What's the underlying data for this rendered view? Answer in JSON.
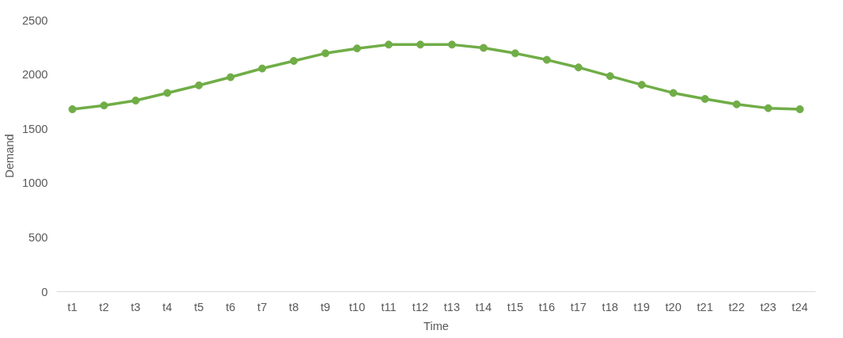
{
  "chart_data": {
    "type": "line",
    "xlabel": "Time",
    "ylabel": "Demand",
    "categories": [
      "t1",
      "t2",
      "t3",
      "t4",
      "t5",
      "t6",
      "t7",
      "t8",
      "t9",
      "t10",
      "t11",
      "t12",
      "t13",
      "t14",
      "t15",
      "t16",
      "t17",
      "t18",
      "t19",
      "t20",
      "t21",
      "t22",
      "t23",
      "t24"
    ],
    "series": [
      {
        "color": "#70ad47",
        "values": [
          1680,
          1715,
          1760,
          1830,
          1900,
          1975,
          2055,
          2125,
          2195,
          2240,
          2275,
          2275,
          2275,
          2245,
          2195,
          2135,
          2065,
          1985,
          1905,
          1830,
          1775,
          1725,
          1690,
          1680
        ]
      }
    ],
    "ylim": [
      0,
      2500
    ],
    "yticks": [
      0,
      500,
      1000,
      1500,
      2000,
      2500
    ],
    "grid": false,
    "marker": "circle",
    "line_style": "solid"
  }
}
